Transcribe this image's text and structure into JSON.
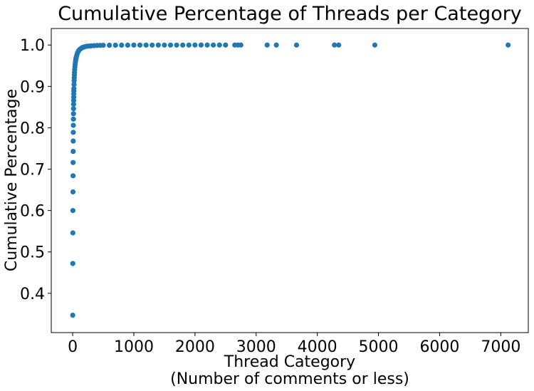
{
  "chart_data": {
    "type": "scatter",
    "title": "Cumulative Percentage of Threads per Category",
    "xlabel_line1": "Thread Category",
    "xlabel_line2": "(Number of comments or less)",
    "ylabel": "Cumulative Percentage",
    "xlim": [
      -350,
      7450
    ],
    "ylim": [
      0.305,
      1.04
    ],
    "xticks": [
      0,
      1000,
      2000,
      3000,
      4000,
      5000,
      6000,
      7000
    ],
    "yticks": [
      0.4,
      0.5,
      0.6,
      0.7,
      0.8,
      0.9,
      1.0
    ],
    "ytick_labels": [
      "0.4",
      "0.5",
      "0.6",
      "0.7",
      "0.8",
      "0.9",
      "1.0"
    ],
    "grid": false,
    "legend": "none",
    "color": "#1f77b4",
    "series": [
      {
        "x": [
          1,
          2,
          3,
          4,
          5,
          6,
          7,
          8,
          9,
          10,
          11,
          12,
          13,
          14,
          15,
          16,
          17,
          18,
          19,
          20,
          22,
          24,
          26,
          28,
          30,
          33,
          36,
          40,
          45,
          50,
          55,
          60,
          70,
          80,
          90,
          100,
          120,
          140,
          160,
          180,
          200,
          230,
          260,
          300,
          350,
          400,
          450,
          500,
          600,
          700,
          800,
          900,
          1000,
          1100,
          1200,
          1300,
          1400,
          1500,
          1600,
          1700,
          1800,
          1900,
          2000,
          2100,
          2200,
          2300,
          2400,
          2500,
          2650,
          2700,
          2750,
          3180,
          3330,
          3660,
          4280,
          4350,
          4940,
          7120
        ],
        "y": [
          0.347,
          0.472,
          0.546,
          0.6,
          0.645,
          0.684,
          0.716,
          0.743,
          0.768,
          0.789,
          0.806,
          0.821,
          0.834,
          0.846,
          0.857,
          0.866,
          0.874,
          0.882,
          0.889,
          0.895,
          0.905,
          0.914,
          0.921,
          0.928,
          0.934,
          0.941,
          0.947,
          0.953,
          0.959,
          0.964,
          0.968,
          0.972,
          0.977,
          0.981,
          0.984,
          0.987,
          0.99,
          0.992,
          0.994,
          0.995,
          0.996,
          0.997,
          0.9975,
          0.998,
          0.9985,
          0.999,
          0.9992,
          0.9994,
          0.9995,
          0.9996,
          0.9997,
          0.9997,
          0.9998,
          0.9998,
          0.9998,
          0.9999,
          0.9999,
          0.9999,
          0.9999,
          0.9999,
          0.9999,
          0.9999,
          1.0,
          1.0,
          1.0,
          1.0,
          1.0,
          1.0,
          1.0,
          1.0,
          1.0,
          1.0,
          1.0,
          1.0,
          1.0,
          1.0,
          1.0,
          1.0
        ]
      }
    ]
  }
}
